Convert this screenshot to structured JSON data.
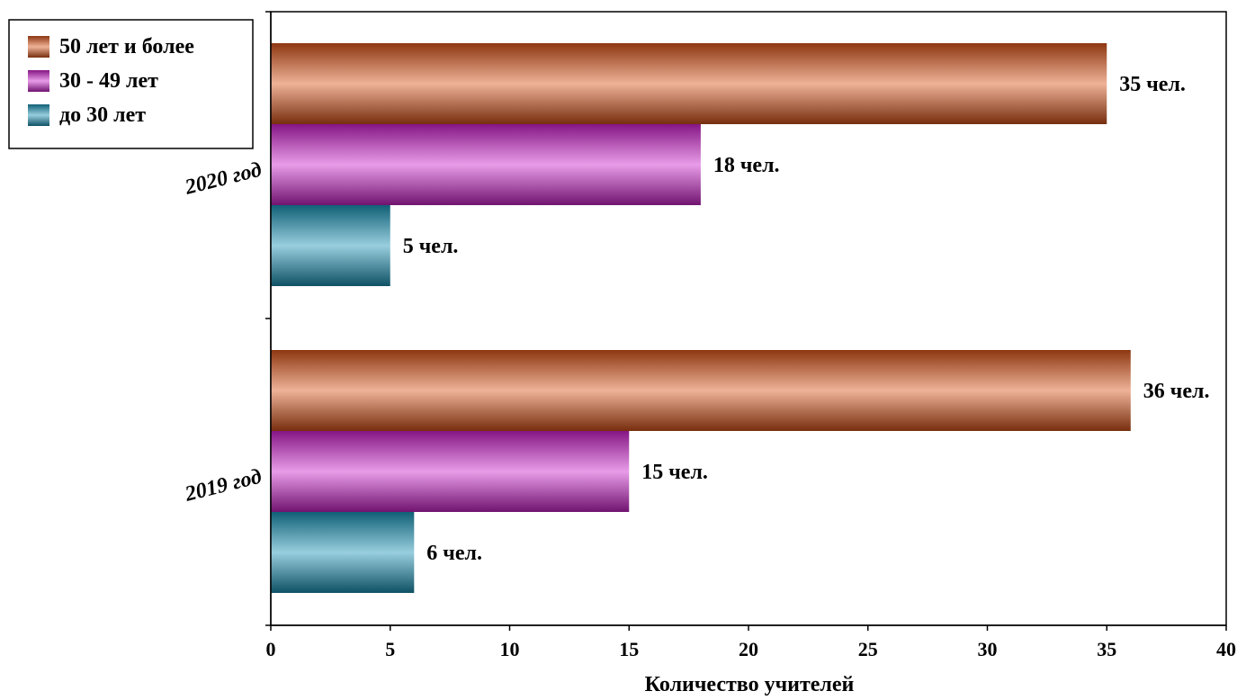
{
  "chart_data": {
    "type": "bar",
    "orientation": "horizontal",
    "categories": [
      "2020 год",
      "2019 год"
    ],
    "series": [
      {
        "name": "50 лет и более",
        "color": "#d9541a",
        "values": [
          35,
          36
        ],
        "labels": [
          "35 чел.",
          "36 чел."
        ]
      },
      {
        "name": "30 - 49 лет",
        "color": "#cc22cc",
        "values": [
          18,
          15
        ],
        "labels": [
          "18 чел.",
          "15 чел."
        ]
      },
      {
        "name": "до 30 лет",
        "color": "#1a93b5",
        "values": [
          5,
          6
        ],
        "labels": [
          "5 чел.",
          "6 чел."
        ]
      }
    ],
    "xlabel": "Количество учителей",
    "xlim": [
      0,
      40
    ],
    "xticks": [
      "0",
      "5",
      "10",
      "15",
      "20",
      "25",
      "30",
      "35",
      "40"
    ],
    "grid": false,
    "legend_position": "top-left"
  }
}
